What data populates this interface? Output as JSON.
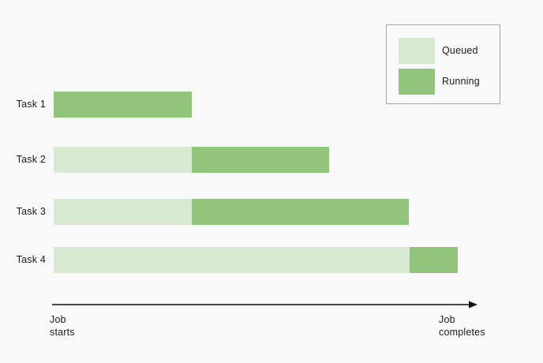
{
  "chart_data": {
    "type": "bar",
    "variant": "gantt-timeline",
    "title": "",
    "xlim": [
      0,
      100
    ],
    "grid": false,
    "legend_position": "top-right",
    "states": {
      "Queued": {
        "color": "#d9ead3"
      },
      "Running": {
        "color": "#93c47d"
      }
    },
    "legend": [
      {
        "label": "Queued",
        "color": "#d9ead3"
      },
      {
        "label": "Running",
        "color": "#93c47d"
      }
    ],
    "tasks": [
      {
        "label": "Task 1",
        "segments": [
          {
            "state": "Running",
            "start": 0,
            "end": 34.2
          }
        ]
      },
      {
        "label": "Task 2",
        "segments": [
          {
            "state": "Queued",
            "start": 0,
            "end": 34.2
          },
          {
            "state": "Running",
            "start": 34.2,
            "end": 68.2
          }
        ]
      },
      {
        "label": "Task 3",
        "segments": [
          {
            "state": "Queued",
            "start": 0,
            "end": 34.2
          },
          {
            "state": "Running",
            "start": 34.2,
            "end": 87.9
          }
        ]
      },
      {
        "label": "Task 4",
        "segments": [
          {
            "state": "Queued",
            "start": 0,
            "end": 88.1
          },
          {
            "state": "Running",
            "start": 88.1,
            "end": 100
          }
        ]
      }
    ],
    "x_axis": {
      "start_label": "Job\nstarts",
      "end_label": "Job\ncompletes",
      "arrow_color": "#111111"
    }
  }
}
